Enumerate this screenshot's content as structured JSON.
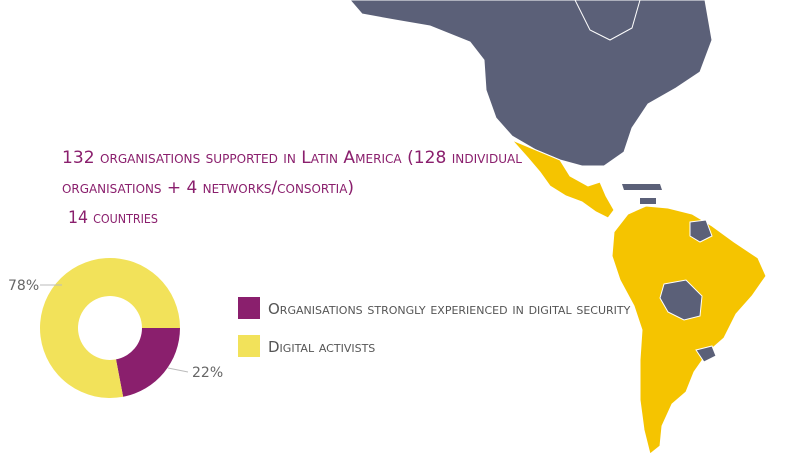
{
  "annotations": [
    "132 organisations supported in Latin America (128 individual",
    "organisations + 4 networks/consortia)",
    "14 countries"
  ],
  "chart_data": {
    "type": "pie",
    "donut": true,
    "categories": [
      "Organisations strongly experienced in digital security",
      "Digital activists"
    ],
    "values": [
      22,
      78
    ],
    "value_labels": [
      "22%",
      "78%"
    ],
    "colors": [
      "#8a1f6d",
      "#f2e25a"
    ]
  }
}
